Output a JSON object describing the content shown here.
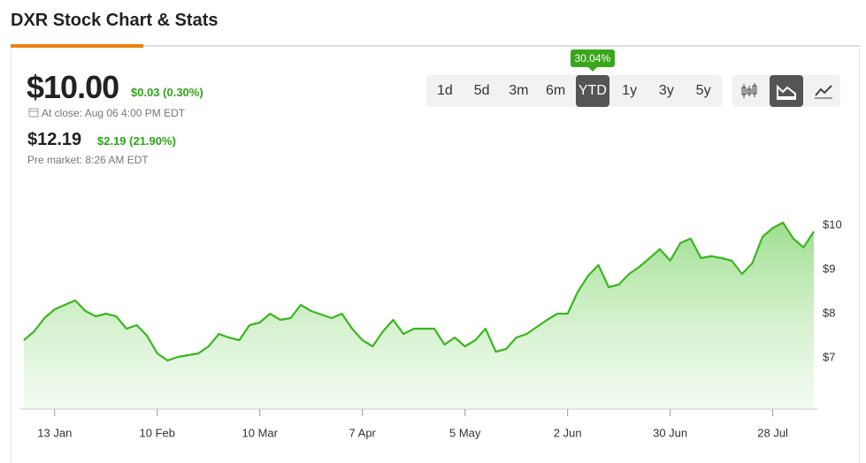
{
  "header": {
    "title": "DXR Stock Chart & Stats"
  },
  "quote": {
    "price": "$10.00",
    "change": "$0.03 (0.30%)",
    "close_note": "At close: Aug 06 4:00 PM EDT",
    "pre_price": "$12.19",
    "pre_change": "$2.19 (21.90%)",
    "pre_note": "Pre market: 8:26 AM EDT"
  },
  "ranges": {
    "options": [
      "1d",
      "5d",
      "3m",
      "6m",
      "YTD",
      "1y",
      "3y",
      "5y"
    ],
    "active": 4,
    "badge": "30.04%"
  },
  "chart_data": {
    "type": "area",
    "color": "#3cb521",
    "categories": [
      null,
      null,
      null,
      "13 Jan",
      null,
      null,
      null,
      null,
      null,
      null,
      null,
      null,
      null,
      "10 Feb",
      null,
      null,
      null,
      null,
      null,
      null,
      null,
      null,
      null,
      "10 Mar",
      null,
      null,
      null,
      null,
      null,
      null,
      null,
      null,
      null,
      "7 Apr",
      null,
      null,
      null,
      null,
      null,
      null,
      null,
      null,
      null,
      "5 May",
      null,
      null,
      null,
      null,
      null,
      null,
      null,
      null,
      null,
      "2 Jun",
      null,
      null,
      null,
      null,
      null,
      null,
      null,
      null,
      null,
      "30 Jun",
      null,
      null,
      null,
      null,
      null,
      null,
      null,
      null,
      null,
      "28 Jul",
      null,
      null,
      null,
      null
    ],
    "values": [
      7.4,
      7.6,
      7.9,
      8.1,
      8.2,
      8.3,
      8.06,
      7.94,
      8.0,
      7.94,
      7.66,
      7.74,
      7.5,
      7.1,
      6.94,
      7.02,
      7.06,
      7.1,
      7.26,
      7.54,
      7.46,
      7.4,
      7.74,
      7.8,
      8.0,
      7.86,
      7.9,
      8.2,
      8.06,
      7.98,
      7.9,
      8.0,
      7.66,
      7.4,
      7.26,
      7.6,
      7.86,
      7.54,
      7.66,
      7.66,
      7.66,
      7.3,
      7.46,
      7.26,
      7.4,
      7.66,
      7.14,
      7.2,
      7.46,
      7.54,
      7.7,
      7.86,
      8.0,
      8.0,
      8.5,
      8.86,
      9.1,
      8.6,
      8.66,
      8.9,
      9.06,
      9.26,
      9.46,
      9.2,
      9.6,
      9.7,
      9.26,
      9.3,
      9.26,
      9.2,
      8.9,
      9.14,
      9.74,
      9.94,
      10.06,
      9.7,
      9.5,
      9.86
    ],
    "ylim": [
      5.84,
      10.8
    ],
    "yticks": [
      {
        "value": 7,
        "label": "$7"
      },
      {
        "value": 8,
        "label": "$8"
      },
      {
        "value": 9,
        "label": "$9"
      },
      {
        "value": 10,
        "label": "$10"
      }
    ]
  }
}
